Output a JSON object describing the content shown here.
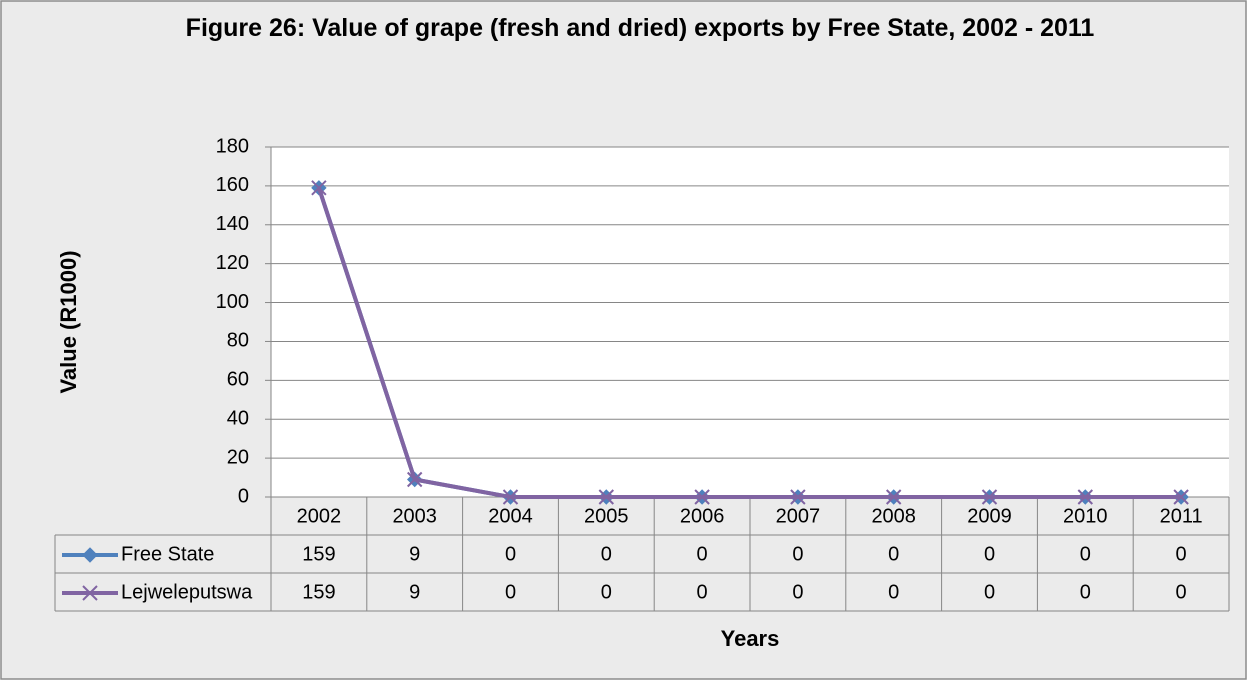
{
  "chart_data": {
    "type": "line",
    "title": "Figure 26: Value of grape (fresh and dried) exports by Free State, 2002 - 2011",
    "y_label": "Value (R1000)",
    "x_label": "Years",
    "categories": [
      "2002",
      "2003",
      "2004",
      "2005",
      "2006",
      "2007",
      "2008",
      "2009",
      "2010",
      "2011"
    ],
    "series": [
      {
        "name": "Free State",
        "color": "#4f81bd",
        "marker": "diamond",
        "values": [
          159,
          9,
          0,
          0,
          0,
          0,
          0,
          0,
          0,
          0
        ]
      },
      {
        "name": "Lejweleputswa",
        "color": "#8064a2",
        "marker": "x",
        "values": [
          159,
          9,
          0,
          0,
          0,
          0,
          0,
          0,
          0,
          0
        ]
      }
    ],
    "ylim": [
      0,
      180
    ],
    "yticks": [
      0,
      20,
      40,
      60,
      80,
      100,
      120,
      140,
      160,
      180
    ],
    "grid": true,
    "data_table": true
  }
}
